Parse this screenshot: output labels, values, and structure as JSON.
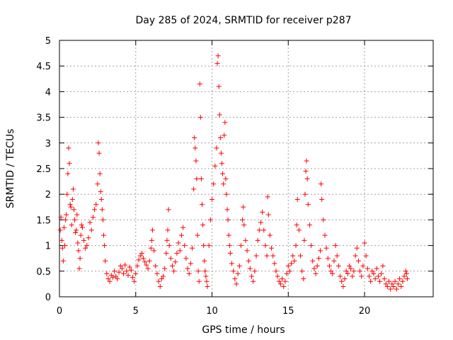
{
  "chart_data": {
    "type": "scatter",
    "title": "Day 285 of 2024, SRMTID for receiver p287",
    "xlabel": "GPS time / hours",
    "ylabel": "SRMTID / TECUs",
    "xlim": [
      0,
      24.5
    ],
    "ylim": [
      0,
      5
    ],
    "x_ticks": [
      0,
      5,
      10,
      15,
      20
    ],
    "x_tick_labels": [
      "0",
      "5",
      "10",
      "15",
      "20"
    ],
    "y_ticks": [
      0,
      0.5,
      1,
      1.5,
      2,
      2.5,
      3,
      3.5,
      4,
      4.5,
      5
    ],
    "y_tick_labels": [
      "0",
      "0.5",
      "1",
      "1.5",
      "2",
      "2.5",
      "3",
      "3.5",
      "4",
      "4.5",
      "5"
    ],
    "grid": true,
    "marker": "+",
    "color": "#ff0000",
    "series": [
      {
        "name": "SRMTID",
        "points": [
          [
            0.05,
            1.3
          ],
          [
            0.1,
            1.55
          ],
          [
            0.15,
            1.1
          ],
          [
            0.2,
            0.95
          ],
          [
            0.25,
            0.7
          ],
          [
            0.3,
            1.35
          ],
          [
            0.35,
            1.0
          ],
          [
            0.4,
            1.5
          ],
          [
            0.45,
            1.6
          ],
          [
            0.5,
            2.0
          ],
          [
            0.55,
            2.4
          ],
          [
            0.6,
            2.9
          ],
          [
            0.65,
            2.6
          ],
          [
            0.7,
            1.8
          ],
          [
            0.75,
            1.75
          ],
          [
            0.8,
            1.4
          ],
          [
            0.85,
            1.9
          ],
          [
            0.9,
            2.1
          ],
          [
            0.95,
            1.7
          ],
          [
            1.0,
            1.5
          ],
          [
            1.05,
            1.25
          ],
          [
            1.1,
            1.3
          ],
          [
            1.15,
            1.6
          ],
          [
            1.2,
            1.05
          ],
          [
            1.25,
            0.9
          ],
          [
            1.3,
            0.55
          ],
          [
            1.35,
            0.75
          ],
          [
            1.4,
            1.2
          ],
          [
            1.45,
            1.4
          ],
          [
            1.5,
            1.35
          ],
          [
            1.6,
            1.1
          ],
          [
            1.7,
            0.95
          ],
          [
            1.8,
            1.0
          ],
          [
            1.9,
            1.15
          ],
          [
            2.0,
            1.45
          ],
          [
            2.1,
            1.3
          ],
          [
            2.2,
            1.55
          ],
          [
            2.3,
            1.7
          ],
          [
            2.4,
            1.8
          ],
          [
            2.5,
            2.2
          ],
          [
            2.55,
            3.0
          ],
          [
            2.6,
            2.8
          ],
          [
            2.65,
            2.4
          ],
          [
            2.7,
            2.05
          ],
          [
            2.75,
            1.9
          ],
          [
            2.8,
            1.7
          ],
          [
            2.85,
            1.5
          ],
          [
            2.9,
            1.2
          ],
          [
            2.95,
            1.0
          ],
          [
            3.0,
            0.7
          ],
          [
            3.1,
            0.45
          ],
          [
            3.2,
            0.35
          ],
          [
            3.3,
            0.3
          ],
          [
            3.4,
            0.42
          ],
          [
            3.5,
            0.38
          ],
          [
            3.6,
            0.5
          ],
          [
            3.7,
            0.4
          ],
          [
            3.8,
            0.35
          ],
          [
            3.9,
            0.48
          ],
          [
            4.0,
            0.6
          ],
          [
            4.1,
            0.55
          ],
          [
            4.2,
            0.45
          ],
          [
            4.3,
            0.62
          ],
          [
            4.4,
            0.5
          ],
          [
            4.5,
            0.42
          ],
          [
            4.6,
            0.58
          ],
          [
            4.7,
            0.52
          ],
          [
            4.8,
            0.38
          ],
          [
            4.9,
            0.3
          ],
          [
            5.0,
            0.45
          ],
          [
            5.1,
            0.6
          ],
          [
            5.2,
            0.72
          ],
          [
            5.3,
            0.8
          ],
          [
            5.4,
            0.85
          ],
          [
            5.5,
            0.75
          ],
          [
            5.6,
            0.68
          ],
          [
            5.7,
            0.62
          ],
          [
            5.8,
            0.55
          ],
          [
            5.9,
            0.7
          ],
          [
            6.0,
            0.95
          ],
          [
            6.05,
            1.1
          ],
          [
            6.1,
            1.3
          ],
          [
            6.2,
            0.9
          ],
          [
            6.3,
            0.6
          ],
          [
            6.4,
            0.45
          ],
          [
            6.5,
            0.3
          ],
          [
            6.6,
            0.2
          ],
          [
            6.7,
            0.35
          ],
          [
            6.8,
            0.4
          ],
          [
            6.9,
            0.55
          ],
          [
            7.0,
            0.85
          ],
          [
            7.05,
            1.1
          ],
          [
            7.1,
            1.3
          ],
          [
            7.15,
            1.7
          ],
          [
            7.2,
            1.0
          ],
          [
            7.3,
            0.75
          ],
          [
            7.4,
            0.6
          ],
          [
            7.5,
            0.5
          ],
          [
            7.6,
            0.68
          ],
          [
            7.7,
            0.85
          ],
          [
            7.8,
            1.05
          ],
          [
            7.9,
            0.9
          ],
          [
            8.0,
            1.2
          ],
          [
            8.1,
            1.35
          ],
          [
            8.2,
            1.0
          ],
          [
            8.3,
            0.75
          ],
          [
            8.4,
            0.55
          ],
          [
            8.5,
            0.45
          ],
          [
            8.6,
            0.65
          ],
          [
            8.7,
            0.95
          ],
          [
            8.8,
            2.1
          ],
          [
            8.85,
            3.1
          ],
          [
            8.9,
            2.9
          ],
          [
            8.95,
            2.65
          ],
          [
            9.0,
            2.3
          ],
          [
            9.05,
            1.2
          ],
          [
            9.1,
            0.5
          ],
          [
            9.15,
            0.3
          ],
          [
            9.2,
            4.15
          ],
          [
            9.25,
            3.5
          ],
          [
            9.3,
            2.3
          ],
          [
            9.35,
            1.8
          ],
          [
            9.4,
            1.4
          ],
          [
            9.45,
            1.0
          ],
          [
            9.5,
            0.7
          ],
          [
            9.55,
            0.5
          ],
          [
            9.6,
            0.4
          ],
          [
            9.65,
            0.3
          ],
          [
            9.7,
            0.2
          ],
          [
            9.8,
            1.0
          ],
          [
            9.9,
            1.5
          ],
          [
            10.0,
            1.9
          ],
          [
            10.1,
            2.2
          ],
          [
            10.2,
            2.55
          ],
          [
            10.3,
            2.9
          ],
          [
            10.35,
            4.55
          ],
          [
            10.4,
            4.7
          ],
          [
            10.45,
            4.1
          ],
          [
            10.5,
            3.55
          ],
          [
            10.55,
            3.1
          ],
          [
            10.6,
            2.8
          ],
          [
            10.65,
            2.6
          ],
          [
            10.7,
            2.4
          ],
          [
            10.75,
            2.2
          ],
          [
            10.8,
            3.15
          ],
          [
            10.85,
            3.4
          ],
          [
            10.9,
            2.3
          ],
          [
            10.95,
            2.0
          ],
          [
            11.0,
            1.7
          ],
          [
            11.05,
            1.5
          ],
          [
            11.1,
            1.2
          ],
          [
            11.15,
            1.0
          ],
          [
            11.2,
            0.85
          ],
          [
            11.3,
            0.65
          ],
          [
            11.4,
            0.5
          ],
          [
            11.5,
            0.35
          ],
          [
            11.6,
            0.25
          ],
          [
            11.7,
            0.45
          ],
          [
            11.8,
            0.6
          ],
          [
            11.9,
            1.0
          ],
          [
            12.0,
            1.5
          ],
          [
            12.05,
            1.75
          ],
          [
            12.1,
            1.4
          ],
          [
            12.2,
            1.1
          ],
          [
            12.3,
            0.9
          ],
          [
            12.4,
            0.7
          ],
          [
            12.5,
            0.55
          ],
          [
            12.6,
            0.4
          ],
          [
            12.7,
            0.3
          ],
          [
            12.8,
            0.5
          ],
          [
            12.9,
            0.8
          ],
          [
            13.0,
            1.1
          ],
          [
            13.1,
            1.3
          ],
          [
            13.2,
            1.45
          ],
          [
            13.3,
            1.65
          ],
          [
            13.4,
            1.3
          ],
          [
            13.5,
            1.0
          ],
          [
            13.6,
            0.8
          ],
          [
            13.65,
            1.95
          ],
          [
            13.7,
            1.6
          ],
          [
            13.8,
            1.2
          ],
          [
            13.9,
            0.95
          ],
          [
            14.0,
            0.8
          ],
          [
            14.1,
            0.65
          ],
          [
            14.2,
            0.5
          ],
          [
            14.3,
            0.4
          ],
          [
            14.4,
            0.3
          ],
          [
            14.5,
            0.25
          ],
          [
            14.6,
            0.35
          ],
          [
            14.7,
            0.2
          ],
          [
            14.8,
            0.3
          ],
          [
            14.9,
            0.45
          ],
          [
            15.0,
            0.6
          ],
          [
            15.1,
            0.5
          ],
          [
            15.2,
            0.65
          ],
          [
            15.3,
            0.8
          ],
          [
            15.4,
            0.7
          ],
          [
            15.5,
            1.0
          ],
          [
            15.55,
            1.4
          ],
          [
            15.6,
            1.9
          ],
          [
            15.7,
            1.3
          ],
          [
            15.8,
            0.8
          ],
          [
            15.9,
            0.5
          ],
          [
            16.0,
            0.35
          ],
          [
            16.05,
            1.1
          ],
          [
            16.1,
            2.0
          ],
          [
            16.15,
            2.45
          ],
          [
            16.2,
            2.65
          ],
          [
            16.25,
            2.3
          ],
          [
            16.3,
            1.8
          ],
          [
            16.4,
            1.4
          ],
          [
            16.5,
            1.0
          ],
          [
            16.6,
            0.7
          ],
          [
            16.7,
            0.55
          ],
          [
            16.8,
            0.45
          ],
          [
            16.9,
            0.6
          ],
          [
            17.0,
            0.75
          ],
          [
            17.1,
            0.9
          ],
          [
            17.15,
            2.2
          ],
          [
            17.2,
            1.9
          ],
          [
            17.3,
            1.5
          ],
          [
            17.4,
            1.2
          ],
          [
            17.5,
            0.95
          ],
          [
            17.6,
            0.75
          ],
          [
            17.7,
            0.6
          ],
          [
            17.8,
            0.5
          ],
          [
            17.9,
            0.45
          ],
          [
            18.0,
            0.7
          ],
          [
            18.1,
            1.0
          ],
          [
            18.2,
            0.8
          ],
          [
            18.3,
            0.6
          ],
          [
            18.4,
            0.4
          ],
          [
            18.5,
            0.3
          ],
          [
            18.6,
            0.2
          ],
          [
            18.7,
            0.35
          ],
          [
            18.8,
            0.5
          ],
          [
            18.9,
            0.45
          ],
          [
            19.0,
            0.6
          ],
          [
            19.1,
            0.55
          ],
          [
            19.2,
            0.4
          ],
          [
            19.3,
            0.5
          ],
          [
            19.4,
            0.8
          ],
          [
            19.5,
            0.95
          ],
          [
            19.6,
            0.7
          ],
          [
            19.7,
            0.5
          ],
          [
            19.8,
            0.4
          ],
          [
            19.9,
            0.6
          ],
          [
            20.0,
            1.05
          ],
          [
            20.1,
            0.8
          ],
          [
            20.2,
            0.55
          ],
          [
            20.3,
            0.4
          ],
          [
            20.4,
            0.3
          ],
          [
            20.5,
            0.5
          ],
          [
            20.6,
            0.45
          ],
          [
            20.7,
            0.35
          ],
          [
            20.8,
            0.55
          ],
          [
            20.9,
            0.4
          ],
          [
            21.0,
            0.3
          ],
          [
            21.1,
            0.45
          ],
          [
            21.2,
            0.6
          ],
          [
            21.3,
            0.35
          ],
          [
            21.4,
            0.25
          ],
          [
            21.5,
            0.2
          ],
          [
            21.6,
            0.3
          ],
          [
            21.7,
            0.15
          ],
          [
            21.8,
            0.25
          ],
          [
            21.9,
            0.2
          ],
          [
            22.0,
            0.3
          ],
          [
            22.1,
            0.15
          ],
          [
            22.2,
            0.25
          ],
          [
            22.3,
            0.35
          ],
          [
            22.4,
            0.2
          ],
          [
            22.5,
            0.3
          ],
          [
            22.6,
            0.4
          ],
          [
            22.7,
            0.5
          ],
          [
            22.75,
            0.45
          ],
          [
            22.8,
            0.35
          ]
        ]
      }
    ]
  }
}
